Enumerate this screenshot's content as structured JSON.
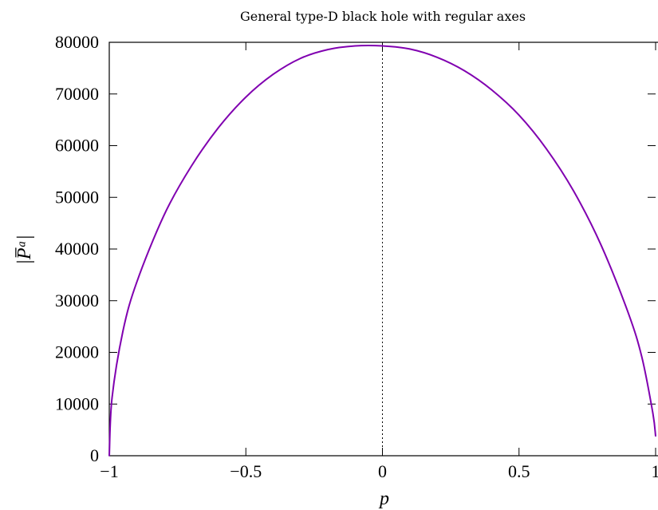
{
  "chart_data": {
    "type": "line",
    "title": "General type-D black hole with regular axes",
    "xlabel": "p",
    "ylabel": "|P̅ᵃ|",
    "xlim": [
      -1,
      1
    ],
    "ylim": [
      0,
      80000
    ],
    "x_ticks": [
      -1,
      -0.5,
      0,
      0.5,
      1
    ],
    "x_tick_labels": [
      "−1",
      "−0.5",
      "0",
      "0.5",
      "1"
    ],
    "y_ticks": [
      0,
      10000,
      20000,
      30000,
      40000,
      50000,
      60000,
      70000,
      80000
    ],
    "y_tick_labels": [
      "0",
      "10000",
      "20000",
      "30000",
      "40000",
      "50000",
      "60000",
      "70000",
      "80000"
    ],
    "grid": false,
    "reference_line": {
      "x": 0,
      "style": "dotted"
    },
    "series": [
      {
        "color": "#8000b0",
        "x": [
          -1,
          -0.99,
          -0.95,
          -0.9,
          -0.8,
          -0.7,
          -0.6,
          -0.5,
          -0.4,
          -0.3,
          -0.2,
          -0.1,
          0,
          0.1,
          0.2,
          0.3,
          0.4,
          0.5,
          0.6,
          0.7,
          0.8,
          0.9,
          0.95,
          0.99,
          1
        ],
        "y": [
          0,
          11100,
          24100,
          33500,
          46500,
          56000,
          63500,
          69400,
          73800,
          76900,
          78600,
          79300,
          79300,
          78700,
          77100,
          74500,
          70800,
          65900,
          59400,
          51200,
          40800,
          27600,
          19000,
          8200,
          3800
        ]
      }
    ]
  }
}
